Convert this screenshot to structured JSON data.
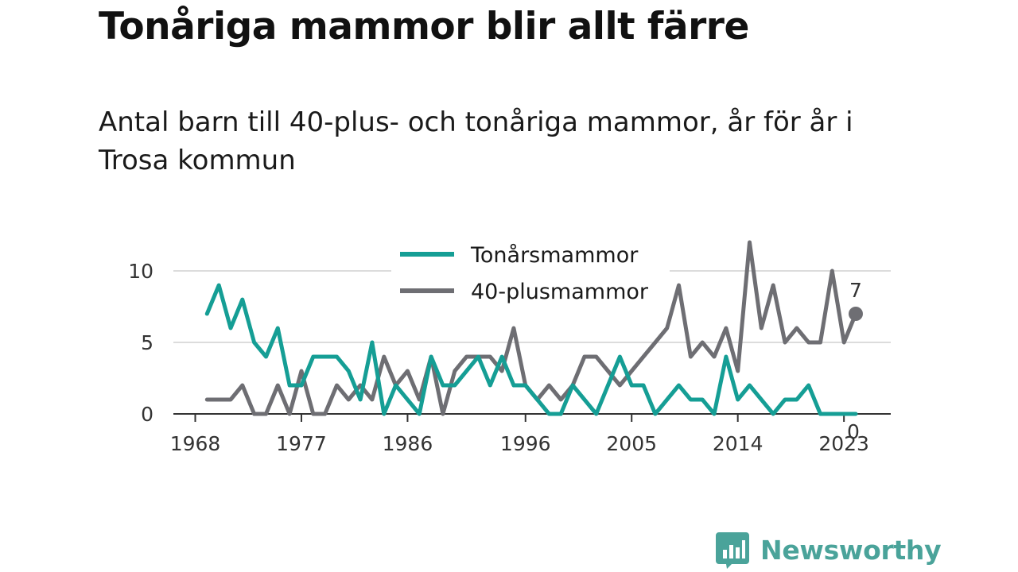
{
  "title": "Tonåriga mammor blir allt färre",
  "subtitle": "Antal barn till 40-plus- och tonåriga mammor, år för år i Trosa kommun",
  "brand": {
    "name": "Newsworthy",
    "color": "#4aa39a",
    "icon": "newsworthy-logo-icon"
  },
  "chart_data": {
    "type": "line",
    "x_ticks": [
      1968,
      1977,
      1986,
      1996,
      2005,
      2014,
      2023
    ],
    "y_ticks": [
      0,
      5,
      10
    ],
    "xlim": [
      1968,
      2024
    ],
    "ylim": [
      0,
      12
    ],
    "grid": true,
    "legend_position": "top-center",
    "series": [
      {
        "name": "Tonårsmammor",
        "color": "#159e95",
        "end_label": "0",
        "x": [
          1969,
          1970,
          1971,
          1972,
          1973,
          1974,
          1975,
          1976,
          1977,
          1978,
          1979,
          1980,
          1981,
          1982,
          1983,
          1984,
          1985,
          1986,
          1987,
          1988,
          1989,
          1990,
          1991,
          1992,
          1993,
          1994,
          1995,
          1996,
          1997,
          1998,
          1999,
          2000,
          2001,
          2002,
          2003,
          2004,
          2005,
          2006,
          2007,
          2008,
          2009,
          2010,
          2011,
          2012,
          2013,
          2014,
          2015,
          2016,
          2017,
          2018,
          2019,
          2020,
          2021,
          2022,
          2023,
          2024
        ],
        "values": [
          7,
          9,
          6,
          8,
          5,
          4,
          6,
          2,
          2,
          4,
          4,
          4,
          3,
          1,
          5,
          0,
          2,
          1,
          0,
          4,
          2,
          2,
          3,
          4,
          2,
          4,
          2,
          2,
          1,
          0,
          0,
          2,
          1,
          0,
          2,
          4,
          2,
          2,
          0,
          1,
          2,
          1,
          1,
          0,
          4,
          1,
          2,
          1,
          0,
          1,
          1,
          2,
          0,
          0,
          0,
          0
        ]
      },
      {
        "name": "40-plusmammor",
        "color": "#6e6e73",
        "end_label": "7",
        "x": [
          1969,
          1970,
          1971,
          1972,
          1973,
          1974,
          1975,
          1976,
          1977,
          1978,
          1979,
          1980,
          1981,
          1982,
          1983,
          1984,
          1985,
          1986,
          1987,
          1988,
          1989,
          1990,
          1991,
          1992,
          1993,
          1994,
          1995,
          1996,
          1997,
          1998,
          1999,
          2000,
          2001,
          2002,
          2003,
          2004,
          2005,
          2006,
          2007,
          2008,
          2009,
          2010,
          2011,
          2012,
          2013,
          2014,
          2015,
          2016,
          2017,
          2018,
          2019,
          2020,
          2021,
          2022,
          2023,
          2024
        ],
        "values": [
          1,
          1,
          1,
          2,
          0,
          0,
          2,
          0,
          3,
          0,
          0,
          2,
          1,
          2,
          1,
          4,
          2,
          3,
          1,
          4,
          0,
          3,
          4,
          4,
          4,
          3,
          6,
          2,
          1,
          2,
          1,
          2,
          4,
          4,
          3,
          2,
          3,
          4,
          5,
          6,
          9,
          4,
          5,
          4,
          6,
          3,
          12,
          6,
          9,
          5,
          6,
          5,
          5,
          10,
          5,
          7
        ]
      }
    ]
  }
}
